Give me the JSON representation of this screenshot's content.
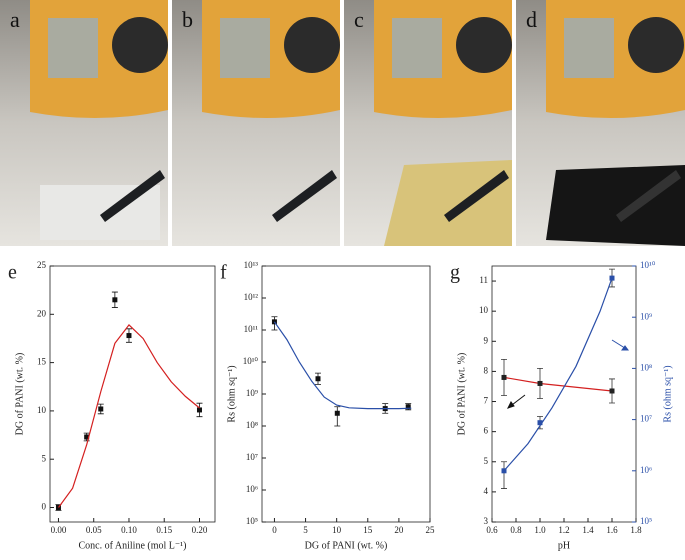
{
  "photos": {
    "labels": [
      "a",
      "b",
      "c",
      "d"
    ]
  },
  "chart_data": [
    {
      "type": "scatter",
      "panel_label": "e",
      "x_label": "Conc. of Aniline (mol L⁻¹)",
      "y_label": "DG of PANI (wt. %)",
      "xlim": [
        -0.012,
        0.222
      ],
      "ylim": [
        -1.5,
        25
      ],
      "xticks": [
        {
          "value": 0,
          "label": "0.00"
        },
        {
          "value": 0.05,
          "label": "0.05"
        },
        {
          "value": 0.1,
          "label": "0.10"
        },
        {
          "value": 0.15,
          "label": "0.15"
        },
        {
          "value": 0.2,
          "label": "0.20"
        }
      ],
      "yticks": [
        0,
        5,
        10,
        15,
        20,
        25
      ],
      "series": [
        {
          "style": "markers",
          "color": "#111111",
          "x": [
            0,
            0.04,
            0.06,
            0.08,
            0.1,
            0.2
          ],
          "values": [
            0,
            7.3,
            10.2,
            21.5,
            17.8,
            10.1
          ],
          "lower": [
            -0.3,
            6.9,
            9.7,
            20.7,
            17.1,
            9.4
          ],
          "upper": [
            0.3,
            7.7,
            10.7,
            22.3,
            18.5,
            10.8
          ]
        },
        {
          "style": "line",
          "color": "#d42020",
          "x": [
            0,
            0.02,
            0.04,
            0.06,
            0.08,
            0.1,
            0.12,
            0.14,
            0.16,
            0.18,
            0.2
          ],
          "values": [
            0,
            2,
            6.5,
            12,
            17,
            18.9,
            17.5,
            15,
            13,
            11.5,
            10.3
          ]
        }
      ]
    },
    {
      "type": "scatter",
      "panel_label": "f",
      "ylog": true,
      "x_label": "DG of PANI (wt. %)",
      "y_label": "Rs (ohm sq⁻¹)",
      "xlim": [
        -2,
        25
      ],
      "ylim": [
        100000,
        10000000000000
      ],
      "xticks": [
        0,
        5,
        10,
        15,
        20,
        25
      ],
      "yticks": [
        {
          "value": 100000,
          "label": "10⁵"
        },
        {
          "value": 1000000,
          "label": "10⁶"
        },
        {
          "value": 10000000,
          "label": "10⁷"
        },
        {
          "value": 100000000,
          "label": "10⁸"
        },
        {
          "value": 1000000000,
          "label": "10⁹"
        },
        {
          "value": 10000000000,
          "label": "10¹⁰"
        },
        {
          "value": 100000000000,
          "label": "10¹¹"
        },
        {
          "value": 1000000000000,
          "label": "10¹²"
        },
        {
          "value": 10000000000000,
          "label": "10¹³"
        }
      ],
      "series": [
        {
          "style": "markers",
          "color": "#111111",
          "x": [
            0,
            7,
            10.1,
            17.8,
            21.5
          ],
          "values": [
            180000000000,
            3000000000,
            250000000,
            350000000,
            400000000
          ],
          "lower": [
            100000000000,
            2000000000,
            100000000,
            250000000,
            320000000
          ],
          "upper": [
            260000000000,
            4500000000,
            400000000,
            500000000,
            500000000
          ]
        },
        {
          "style": "line",
          "color": "#2a4fa8",
          "x": [
            0,
            2,
            4,
            6,
            8,
            10,
            12,
            15,
            20,
            22
          ],
          "values": [
            180000000000,
            50000000000,
            10000000000,
            2500000000,
            800000000,
            450000000,
            370000000,
            350000000,
            350000000,
            360000000
          ]
        }
      ]
    },
    {
      "type": "scatter",
      "panel_label": "g",
      "x_label": "pH",
      "y_label": "DG of PANI (wt. %)",
      "y2_label": "Rs (ohm sq⁻¹)",
      "xlim": [
        0.6,
        1.8
      ],
      "ylim": [
        3,
        11.5
      ],
      "y2log": true,
      "y2lim": [
        100000,
        10000000000
      ],
      "xticks": [
        0.6,
        0.8,
        {
          "value": 1,
          "label": "1.0"
        },
        1.2,
        1.4,
        1.6,
        1.8
      ],
      "yticks": [
        3,
        4,
        5,
        6,
        7,
        8,
        9,
        10,
        11
      ],
      "y2ticks": [
        {
          "value": 100000,
          "label": "10⁵"
        },
        {
          "value": 1000000,
          "label": "10⁶"
        },
        {
          "value": 10000000,
          "label": "10⁷"
        },
        {
          "value": 100000000,
          "label": "10⁸"
        },
        {
          "value": 1000000000,
          "label": "10⁹"
        },
        {
          "value": 10000000000,
          "label": "10¹⁰"
        }
      ],
      "series": [
        {
          "style": "line+markers",
          "color": "#d42020",
          "x": [
            0.7,
            1.0,
            1.6
          ],
          "values": [
            7.8,
            7.6,
            7.35
          ],
          "lower": [
            7.2,
            7.1,
            6.95
          ],
          "upper": [
            8.4,
            8.1,
            7.75
          ]
        },
        {
          "style": "markers",
          "axis": "y2",
          "color": "#2a4fa8",
          "x": [
            0.7,
            1.0,
            1.6
          ],
          "values": [
            1000000,
            8700000,
            5800000000
          ],
          "lower": [
            450000,
            6600000,
            3900000000
          ],
          "upper": [
            1500000,
            11500000,
            8700000000
          ]
        },
        {
          "style": "line",
          "axis": "y2",
          "color": "#2a4fa8",
          "x": [
            0.7,
            0.9,
            1.1,
            1.3,
            1.5,
            1.6
          ],
          "values": [
            1000000,
            3400000,
            17000000,
            110000000,
            1300000000,
            5800000000
          ]
        }
      ]
    }
  ]
}
